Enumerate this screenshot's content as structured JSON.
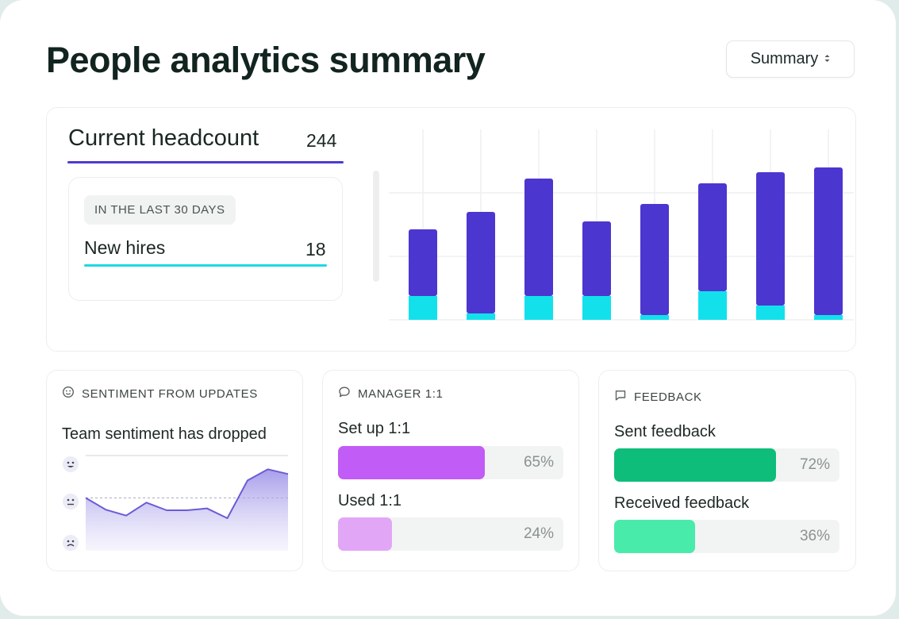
{
  "page": {
    "title": "People analytics summary",
    "view_select": {
      "value": "Summary",
      "caret_icon": "up-down-caret-icon"
    }
  },
  "headcount": {
    "label": "Current headcount",
    "value": "244",
    "period_label": "IN THE LAST 30 DAYS",
    "new_hires_label": "New hires",
    "new_hires_value": "18"
  },
  "colors": {
    "headcount_bar": "#4c36d0",
    "new_hires_bar": "#12e1ec",
    "set_up_fill": "#c25cf6",
    "used_fill": "#e2a6f6",
    "sent_fill": "#0fbd7b",
    "received_fill": "#49ebaa",
    "sentiment_line": "#6a5bd6"
  },
  "chart_data": [
    {
      "type": "bar",
      "stacked": true,
      "categories": [
        "",
        "",
        "",
        "",
        "",
        "",
        "",
        ""
      ],
      "series": [
        {
          "values": [
            30,
            8,
            30,
            30,
            6,
            36,
            18,
            6
          ]
        },
        {
          "values": [
            84,
            128,
            148,
            94,
            140,
            136,
            168,
            186
          ]
        }
      ],
      "ylim": [
        0,
        240
      ],
      "grid": true
    },
    {
      "type": "line",
      "title": "Team sentiment has dropped",
      "x": [
        0,
        1,
        2,
        3,
        4,
        5,
        6,
        7,
        8,
        9,
        10
      ],
      "values": [
        1.0,
        0.55,
        0.33,
        0.82,
        0.53,
        0.53,
        0.6,
        0.23,
        1.66,
        2.08,
        1.9
      ],
      "ylim": [
        -1,
        2.6
      ],
      "reference_line": 1.0
    }
  ],
  "sentiment": {
    "header_icon": "smiley-icon",
    "header": "SENTIMENT FROM UPDATES",
    "title": "Team sentiment has dropped",
    "scale_icons": [
      "happy-face-icon",
      "neutral-face-icon",
      "sad-face-icon"
    ]
  },
  "manager": {
    "header_icon": "chat-bubble-icon",
    "header": "MANAGER 1:1",
    "items": [
      {
        "label": "Set up 1:1",
        "percent": 65,
        "percent_label": "65%"
      },
      {
        "label": "Used 1:1",
        "percent": 24,
        "percent_label": "24%"
      }
    ]
  },
  "feedback": {
    "header_icon": "message-square-icon",
    "header": "FEEDBACK",
    "items": [
      {
        "label": "Sent feedback",
        "percent": 72,
        "percent_label": "72%"
      },
      {
        "label": "Received feedback",
        "percent": 36,
        "percent_label": "36%"
      }
    ]
  }
}
